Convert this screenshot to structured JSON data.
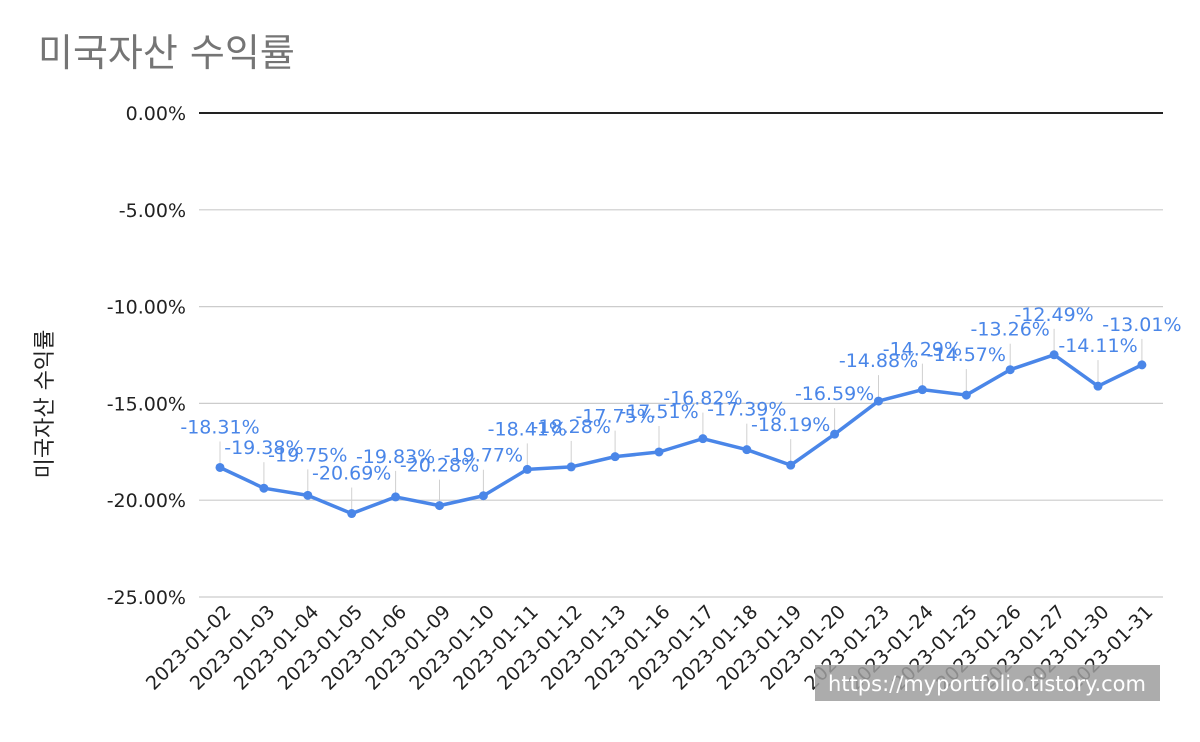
{
  "chart_data": {
    "type": "line",
    "title": "미국자산 수익률",
    "ylabel": "미국자산 수익률",
    "xlabel": "",
    "ylim": [
      -25,
      0
    ],
    "yticks": [
      "0.00%",
      "-5.00%",
      "-10.00%",
      "-15.00%",
      "-20.00%",
      "-25.00%"
    ],
    "ytick_values": [
      0,
      -5,
      -10,
      -15,
      -20,
      -25
    ],
    "grid": true,
    "legend": "none",
    "categories": [
      "2023-01-02",
      "2023-01-03",
      "2023-01-04",
      "2023-01-05",
      "2023-01-06",
      "2023-01-09",
      "2023-01-10",
      "2023-01-11",
      "2023-01-12",
      "2023-01-13",
      "2023-01-16",
      "2023-01-17",
      "2023-01-18",
      "2023-01-19",
      "2023-01-20",
      "2023-01-23",
      "2023-01-24",
      "2023-01-25",
      "2023-01-26",
      "2023-01-27",
      "2023-01-30",
      "2023-01-31"
    ],
    "series": [
      {
        "values": [
          -18.31,
          -19.38,
          -19.75,
          -20.69,
          -19.83,
          -20.28,
          -19.77,
          -18.41,
          -18.28,
          -17.75,
          -17.51,
          -16.82,
          -17.39,
          -18.19,
          -16.59,
          -14.88,
          -14.29,
          -14.57,
          -13.26,
          -12.49,
          -14.11,
          -13.01
        ],
        "labels": [
          "-18.31%",
          "-19.38%",
          "-19.75%",
          "-20.69%",
          "-19.83%",
          "-20.28%",
          "-19.77%",
          "-18.41%",
          "-18.28%",
          "-17.75%",
          "-17.51%",
          "-16.82%",
          "-17.39%",
          "-18.19%",
          "-16.59%",
          "-14.88%",
          "-14.29%",
          "-14.57%",
          "-13.26%",
          "-12.49%",
          "-14.11%",
          "-13.01%"
        ]
      }
    ],
    "colors": {
      "line": "#4a86e8",
      "grid": "#cccccc",
      "zero_line": "#222222",
      "title": "#757575"
    }
  },
  "watermark": "https://myportfolio.tistory.com"
}
